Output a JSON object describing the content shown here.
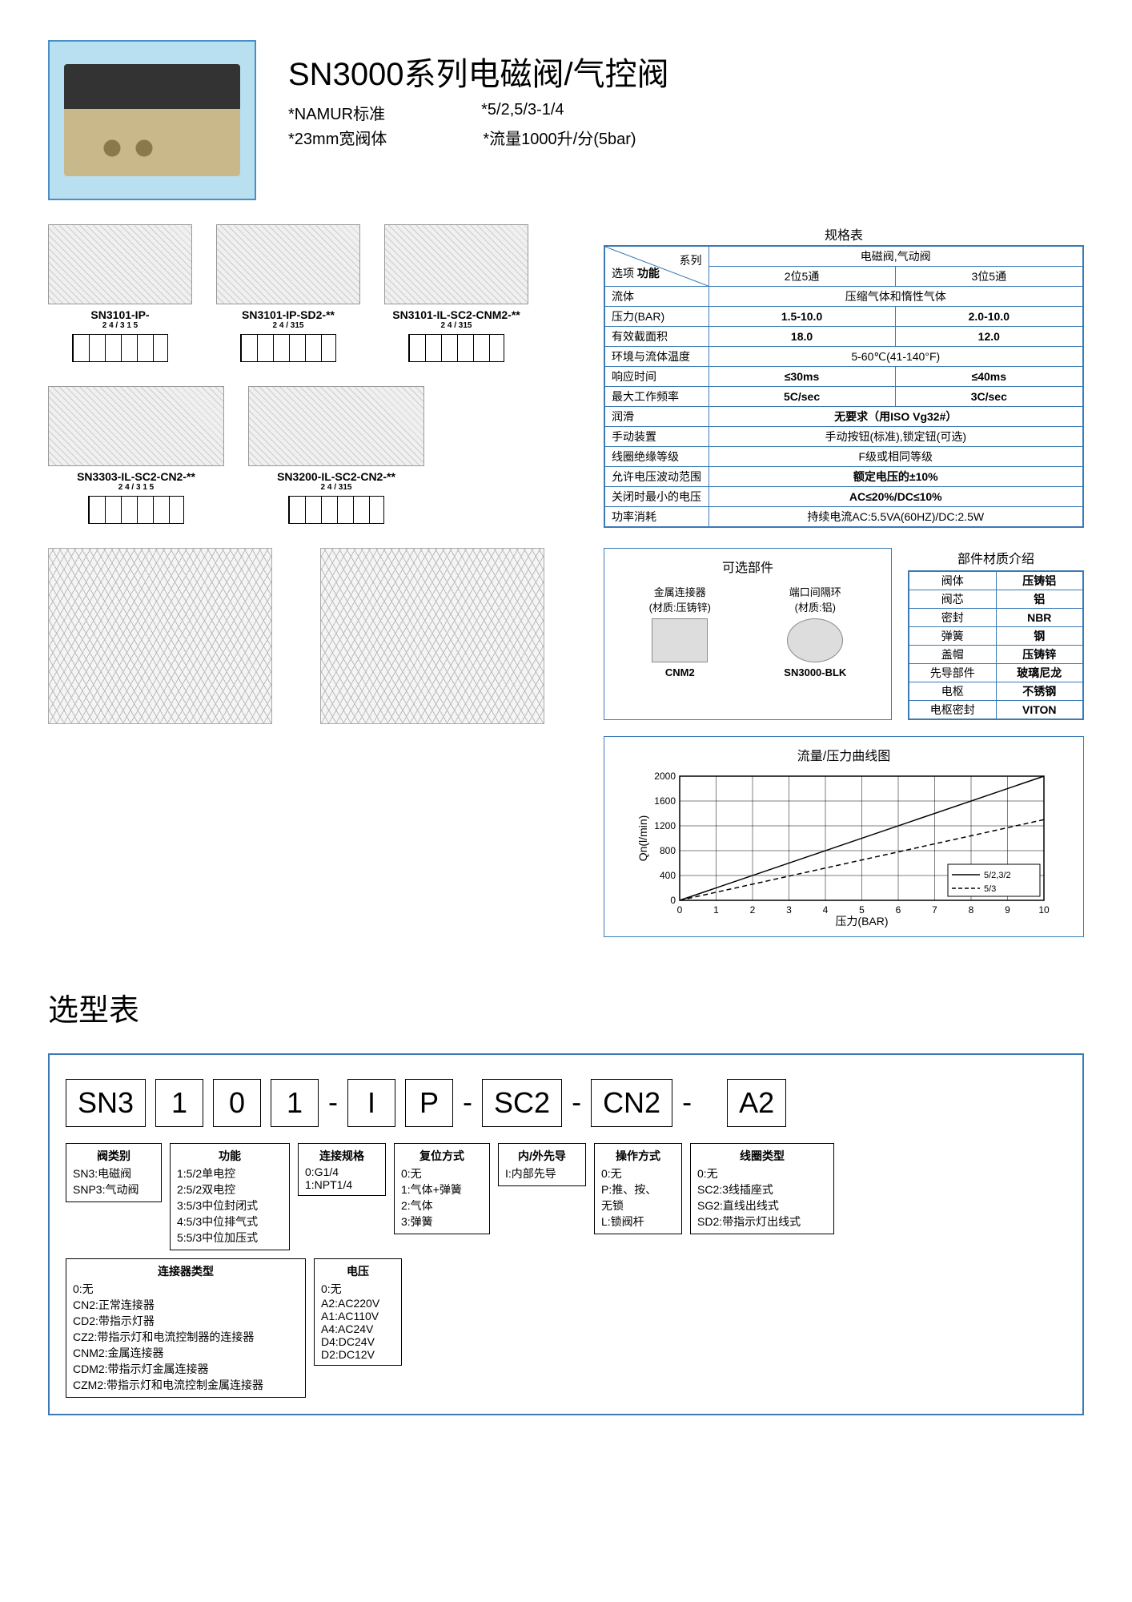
{
  "title": "SN3000系列电磁阀/气控阀",
  "sub1a": "*NAMUR标准",
  "sub1b": "*5/2,5/3-1/4",
  "sub2a": "*23mm宽阀体",
  "sub2b": "*流量1000升/分(5bar)",
  "valves": [
    {
      "code": "SN3101-IP-",
      "ports": "2 4 / 3 1 5"
    },
    {
      "code": "SN3101-IP-SD2-**",
      "ports": "2 4 / 315"
    },
    {
      "code": "SN3101-IL-SC2-CNM2-**",
      "ports": "2 4 / 315"
    },
    {
      "code": "SN3303-IL-SC2-CN2-**",
      "ports": "2 4 / 3 1 5"
    },
    {
      "code": "SN3200-IL-SC2-CN2-**",
      "ports": "2 4 / 315"
    }
  ],
  "specTitle": "规格表",
  "specHeader": {
    "series": "系列",
    "valve": "电磁阀,气动阀",
    "opt": "选项",
    "fn": "功能",
    "p2": "2位5通",
    "p3": "3位5通"
  },
  "specRows": [
    {
      "k": "流体",
      "v": "压缩气体和惰性气体",
      "span": 2
    },
    {
      "k": "压力(BAR)",
      "a": "1.5-10.0",
      "b": "2.0-10.0"
    },
    {
      "k": "有效截面积",
      "a": "18.0",
      "b": "12.0"
    },
    {
      "k": "环境与流体温度",
      "v": "5-60℃(41-140°F)",
      "span": 2
    },
    {
      "k": "响应时间",
      "a": "≤30ms",
      "b": "≤40ms"
    },
    {
      "k": "最大工作频率",
      "a": "5C/sec",
      "b": "3C/sec"
    },
    {
      "k": "润滑",
      "v": "无要求（用ISO Vg32#）",
      "span": 2,
      "bold": true
    },
    {
      "k": "手动装置",
      "v": "手动按钮(标准),锁定钮(可选)",
      "span": 2
    },
    {
      "k": "线圈绝缘等级",
      "v": "F级或相同等级",
      "span": 2
    },
    {
      "k": "允许电压波动范围",
      "v": "额定电压的±10%",
      "span": 2,
      "bold": true
    },
    {
      "k": "关闭时最小的电压",
      "v": "AC≤20%/DC≤10%",
      "span": 2,
      "bold": true
    },
    {
      "k": "功率消耗",
      "v": "持续电流AC:5.5VA(60HZ)/DC:2.5W",
      "span": 2
    }
  ],
  "optTitle": "可选部件",
  "opt1": {
    "t1": "金属连接器",
    "t2": "(材质:压铸锌)",
    "code": "CNM2"
  },
  "opt2": {
    "t1": "端口间隔环",
    "t2": "(材质:铝)",
    "code": "SN3000-BLK"
  },
  "matTitle": "部件材质介绍",
  "matRows": [
    [
      "阀体",
      "压铸铝"
    ],
    [
      "阀芯",
      "铝"
    ],
    [
      "密封",
      "NBR"
    ],
    [
      "弹簧",
      "钢"
    ],
    [
      "盖帽",
      "压铸锌"
    ],
    [
      "先导部件",
      "玻璃尼龙"
    ],
    [
      "电枢",
      "不锈钢"
    ],
    [
      "电枢密封",
      "VITON"
    ]
  ],
  "chart": {
    "title": "流量/压力曲线图",
    "xlabel": "压力(BAR)",
    "ylabel": "Qn(l/min)",
    "xlim": [
      0,
      10
    ],
    "ylim": [
      0,
      2000
    ],
    "ytick_step": 400,
    "line1": {
      "label": "5/2,3/2",
      "style": "solid",
      "pts": [
        [
          0,
          0
        ],
        [
          10,
          2000
        ]
      ]
    },
    "line2": {
      "label": "5/3",
      "style": "dash",
      "pts": [
        [
          0,
          0
        ],
        [
          10,
          1300
        ]
      ]
    },
    "grid_color": "#000",
    "bg": "#fff"
  },
  "selTitle": "选型表",
  "codeSeq": [
    "SN3",
    "1",
    "0",
    "1",
    "-",
    "I",
    "P",
    "-",
    "SC2",
    "-",
    "CN2",
    "-",
    "",
    "A2"
  ],
  "desc": {
    "type": {
      "t": "阀类别",
      "l": [
        "SN3:电磁阀",
        "SNP3:气动阀"
      ]
    },
    "func": {
      "t": "功能",
      "l": [
        "1:5/2单电控",
        "2:5/2双电控",
        "3:5/3中位封闭式",
        "4:5/3中位排气式",
        "5:5/3中位加压式"
      ]
    },
    "port": {
      "t": "连接规格",
      "l": [
        "0:G1/4",
        "1:NPT1/4"
      ]
    },
    "reset": {
      "t": "复位方式",
      "l": [
        "0:无",
        "1:气体+弹簧",
        "2:气体",
        "3:弹簧"
      ]
    },
    "pilot": {
      "t": "内/外先导",
      "l": [
        "I:内部先导"
      ]
    },
    "operate": {
      "t": "操作方式",
      "l": [
        "0:无",
        "P:推、按、",
        "  无锁",
        "L:锁阀杆"
      ]
    },
    "coil": {
      "t": "线圈类型",
      "l": [
        "0:无",
        "SC2:3线插座式",
        "SG2:直线出线式",
        "SD2:带指示灯出线式"
      ]
    },
    "conn": {
      "t": "连接器类型",
      "l": [
        "0:无",
        "CN2:正常连接器",
        "CD2:带指示灯器",
        "CZ2:带指示灯和电流控制器的连接器",
        "CNM2:金属连接器",
        "CDM2:带指示灯金属连接器",
        "CZM2:带指示灯和电流控制金属连接器"
      ]
    },
    "volt": {
      "t": "电压",
      "l": [
        "0:无",
        "A2:AC220V",
        "A1:AC110V",
        "A4:AC24V",
        "D4:DC24V",
        "D2:DC12V"
      ]
    }
  }
}
